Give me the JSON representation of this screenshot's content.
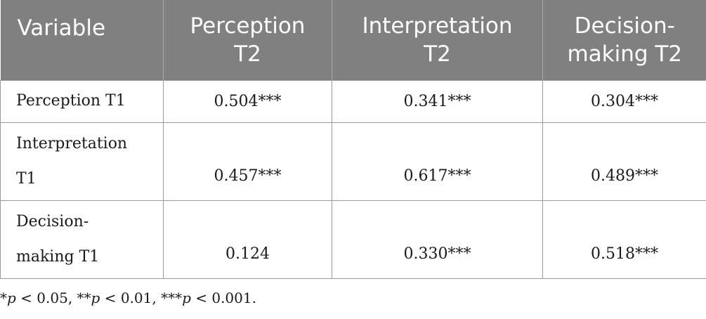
{
  "table": {
    "headers": {
      "variable": "Variable",
      "col1": "Perception T2",
      "col2": "Interpretation T2",
      "col3": "Decision-making T2"
    },
    "rows": [
      {
        "label": "Perception T1",
        "values": [
          "0.504***",
          "0.341***",
          "0.304***"
        ]
      },
      {
        "label": "Interpretation T1",
        "values": [
          "0.457***",
          "0.617***",
          "0.489***"
        ]
      },
      {
        "label": "Decision-making T1",
        "values": [
          "0.124",
          "0.330***",
          "0.518***"
        ]
      }
    ]
  },
  "footnote": {
    "part1_stars": "*",
    "part1_p": "p",
    "part1_rest": " < 0.05, **",
    "part2_p": "p",
    "part2_rest": " < 0.01, ***",
    "part3_p": "p",
    "part3_rest": " < 0.001."
  },
  "colors": {
    "header_bg": "#808080",
    "header_text": "#ffffff",
    "border": "#9a9a9a"
  }
}
